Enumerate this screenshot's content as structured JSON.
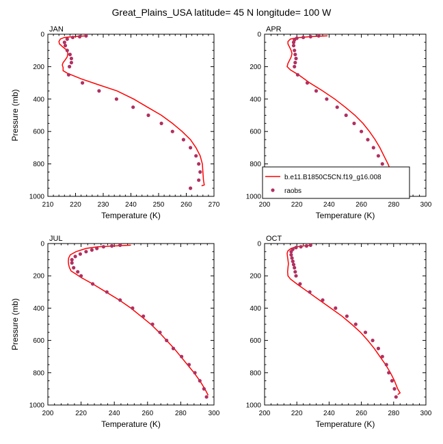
{
  "figure": {
    "title": "Great_Plains_USA  latitude= 45 N longitude= 100 W"
  },
  "colors": {
    "model_line": "#ff0000",
    "obs_marker": "#b03060",
    "frame": "#000000"
  },
  "legend": {
    "model_label": "b.e11.B1850C5CN.f19_g16.008",
    "obs_label": "raobs",
    "panel_index": 1
  },
  "chart_data": [
    {
      "type": "line",
      "panel": "JAN",
      "title": "JAN",
      "xlabel": "Temperature (K)",
      "ylabel": "Pressure (mb)",
      "xlim": [
        210,
        270
      ],
      "ylim": [
        1000,
        0
      ],
      "xticks": [
        210,
        220,
        230,
        240,
        250,
        260,
        270
      ],
      "yticks": [
        0,
        200,
        400,
        600,
        800,
        1000
      ],
      "grid": false,
      "series": [
        {
          "name": "b.e11.B1850C5CN.f19_g16.008",
          "kind": "line",
          "points": [
            [
              224,
              10
            ],
            [
              219,
              15
            ],
            [
              216,
              20
            ],
            [
              214.5,
              30
            ],
            [
              214,
              45
            ],
            [
              214.2,
              60
            ],
            [
              215.5,
              80
            ],
            [
              217,
              100
            ],
            [
              217.2,
              120
            ],
            [
              217,
              140
            ],
            [
              216.2,
              160
            ],
            [
              215.5,
              175
            ],
            [
              215.2,
              190
            ],
            [
              215.5,
              205
            ],
            [
              215.5,
              225
            ],
            [
              217,
              240
            ],
            [
              222,
              275
            ],
            [
              228,
              310
            ],
            [
              235,
              350
            ],
            [
              241,
              400
            ],
            [
              246,
              450
            ],
            [
              251,
              500
            ],
            [
              255,
              550
            ],
            [
              258.5,
              600
            ],
            [
              261.5,
              650
            ],
            [
              263.5,
              700
            ],
            [
              265,
              750
            ],
            [
              265.8,
              800
            ],
            [
              266,
              850
            ],
            [
              266.2,
              900
            ],
            [
              266.5,
              930
            ],
            [
              265.5,
              935
            ]
          ]
        },
        {
          "name": "raobs",
          "kind": "scatter",
          "points": [
            [
              223.8,
              10
            ],
            [
              221.5,
              15
            ],
            [
              219,
              20
            ],
            [
              217,
              30
            ],
            [
              216,
              50
            ],
            [
              216.3,
              70
            ],
            [
              217,
              100
            ],
            [
              218,
              125
            ],
            [
              218.5,
              150
            ],
            [
              218.5,
              175
            ],
            [
              217.8,
              200
            ],
            [
              217.5,
              250
            ],
            [
              222.5,
              300
            ],
            [
              228.5,
              350
            ],
            [
              234.8,
              400
            ],
            [
              240.8,
              450
            ],
            [
              246.3,
              500
            ],
            [
              251,
              550
            ],
            [
              255,
              600
            ],
            [
              259,
              650
            ],
            [
              261.5,
              700
            ],
            [
              263.5,
              750
            ],
            [
              264.5,
              800
            ],
            [
              265,
              850
            ],
            [
              264.5,
              900
            ],
            [
              261.5,
              950
            ]
          ]
        }
      ]
    },
    {
      "type": "line",
      "panel": "APR",
      "title": "APR",
      "xlabel": "Temperature (K)",
      "ylabel": "",
      "xlim": [
        200,
        300
      ],
      "ylim": [
        1000,
        0
      ],
      "xticks": [
        200,
        220,
        240,
        260,
        280,
        300
      ],
      "yticks": [
        0,
        200,
        400,
        600,
        800,
        1000
      ],
      "grid": false,
      "series": [
        {
          "name": "b.e11.B1850C5CN.f19_g16.008",
          "kind": "line",
          "points": [
            [
              239,
              10
            ],
            [
              228,
              15
            ],
            [
              220,
              22
            ],
            [
              216,
              30
            ],
            [
              214.5,
              45
            ],
            [
              214.5,
              60
            ],
            [
              215.5,
              80
            ],
            [
              216.5,
              100
            ],
            [
              217,
              120
            ],
            [
              216.5,
              140
            ],
            [
              215.5,
              160
            ],
            [
              214.5,
              180
            ],
            [
              214,
              200
            ],
            [
              216,
              220
            ],
            [
              221,
              250
            ],
            [
              228,
              300
            ],
            [
              236,
              350
            ],
            [
              243.5,
              400
            ],
            [
              250,
              450
            ],
            [
              256,
              500
            ],
            [
              261,
              550
            ],
            [
              265,
              600
            ],
            [
              268.5,
              650
            ],
            [
              271.5,
              700
            ],
            [
              274,
              750
            ],
            [
              276.5,
              800
            ],
            [
              278.5,
              850
            ],
            [
              280.5,
              900
            ],
            [
              282,
              935
            ]
          ]
        },
        {
          "name": "raobs",
          "kind": "scatter",
          "points": [
            [
              233.5,
              10
            ],
            [
              228.5,
              15
            ],
            [
              224,
              20
            ],
            [
              220,
              25
            ],
            [
              218.5,
              35
            ],
            [
              218,
              50
            ],
            [
              218,
              70
            ],
            [
              218.5,
              100
            ],
            [
              219,
              125
            ],
            [
              219.5,
              150
            ],
            [
              219,
              175
            ],
            [
              218.5,
              200
            ],
            [
              220.5,
              250
            ],
            [
              226.5,
              300
            ],
            [
              232,
              350
            ],
            [
              238.5,
              400
            ],
            [
              245,
              450
            ],
            [
              250.5,
              500
            ],
            [
              255.5,
              550
            ],
            [
              260,
              600
            ],
            [
              264,
              650
            ],
            [
              267.5,
              700
            ],
            [
              270.5,
              750
            ],
            [
              273,
              800
            ],
            [
              275.5,
              850
            ],
            [
              278,
              900
            ],
            [
              280,
              950
            ]
          ]
        }
      ]
    },
    {
      "type": "line",
      "panel": "JUL",
      "title": "JUL",
      "xlabel": "Temperature (K)",
      "ylabel": "Pressure (mb)",
      "xlim": [
        200,
        300
      ],
      "ylim": [
        1000,
        0
      ],
      "xticks": [
        200,
        220,
        240,
        260,
        280,
        300
      ],
      "yticks": [
        0,
        200,
        400,
        600,
        800,
        1000
      ],
      "grid": false,
      "series": [
        {
          "name": "b.e11.B1850C5CN.f19_g16.008",
          "kind": "line",
          "points": [
            [
              250,
              10
            ],
            [
              240,
              15
            ],
            [
              230,
              20
            ],
            [
              223,
              30
            ],
            [
              217,
              50
            ],
            [
              213.5,
              70
            ],
            [
              212.5,
              90
            ],
            [
              212.3,
              110
            ],
            [
              212.5,
              130
            ],
            [
              213,
              150
            ],
            [
              214,
              170
            ],
            [
              217,
              190
            ],
            [
              220,
              210
            ],
            [
              227,
              250
            ],
            [
              235,
              300
            ],
            [
              243,
              350
            ],
            [
              250,
              400
            ],
            [
              256,
              450
            ],
            [
              262,
              500
            ],
            [
              267,
              550
            ],
            [
              271.5,
              600
            ],
            [
              276,
              650
            ],
            [
              280,
              700
            ],
            [
              284,
              750
            ],
            [
              288,
              800
            ],
            [
              291.5,
              850
            ],
            [
              294.5,
              900
            ],
            [
              296,
              930
            ],
            [
              296.5,
              940
            ]
          ]
        },
        {
          "name": "raobs",
          "kind": "scatter",
          "points": [
            [
              243.5,
              10
            ],
            [
              238.5,
              15
            ],
            [
              233.5,
              20
            ],
            [
              229.5,
              30
            ],
            [
              226.5,
              40
            ],
            [
              223,
              50
            ],
            [
              219.5,
              65
            ],
            [
              216.5,
              80
            ],
            [
              214.5,
              100
            ],
            [
              214.5,
              120
            ],
            [
              215.5,
              150
            ],
            [
              218,
              175
            ],
            [
              220,
              200
            ],
            [
              227,
              250
            ],
            [
              235.5,
              300
            ],
            [
              243.5,
              350
            ],
            [
              251,
              400
            ],
            [
              257.5,
              450
            ],
            [
              263,
              500
            ],
            [
              267.5,
              550
            ],
            [
              271.5,
              600
            ],
            [
              275.5,
              650
            ],
            [
              280.5,
              700
            ],
            [
              285,
              750
            ],
            [
              288.5,
              800
            ],
            [
              291.5,
              850
            ],
            [
              294,
              900
            ],
            [
              295.5,
              950
            ]
          ]
        }
      ]
    },
    {
      "type": "line",
      "panel": "OCT",
      "title": "OCT",
      "xlabel": "Temperature (K)",
      "ylabel": "",
      "xlim": [
        200,
        300
      ],
      "ylim": [
        1000,
        0
      ],
      "xticks": [
        200,
        220,
        240,
        260,
        280,
        300
      ],
      "yticks": [
        0,
        200,
        400,
        600,
        800,
        1000
      ],
      "grid": false,
      "series": [
        {
          "name": "b.e11.B1850C5CN.f19_g16.008",
          "kind": "line",
          "points": [
            [
              229,
              10
            ],
            [
              224,
              15
            ],
            [
              219.5,
              20
            ],
            [
              216.5,
              30
            ],
            [
              214.5,
              45
            ],
            [
              214,
              60
            ],
            [
              214.2,
              80
            ],
            [
              214.5,
              100
            ],
            [
              214.8,
              125
            ],
            [
              214.5,
              150
            ],
            [
              214.3,
              175
            ],
            [
              214.5,
              200
            ],
            [
              216,
              220
            ],
            [
              220,
              250
            ],
            [
              227,
              300
            ],
            [
              234,
              350
            ],
            [
              241,
              400
            ],
            [
              248,
              450
            ],
            [
              254,
              500
            ],
            [
              259.5,
              550
            ],
            [
              264,
              600
            ],
            [
              268,
              650
            ],
            [
              271.5,
              700
            ],
            [
              275,
              750
            ],
            [
              278,
              800
            ],
            [
              280.5,
              850
            ],
            [
              282.5,
              900
            ],
            [
              284,
              925
            ],
            [
              282.5,
              935
            ]
          ]
        },
        {
          "name": "raobs",
          "kind": "scatter",
          "points": [
            [
              228.5,
              10
            ],
            [
              226,
              15
            ],
            [
              222.5,
              20
            ],
            [
              219.5,
              25
            ],
            [
              217.5,
              35
            ],
            [
              216.5,
              50
            ],
            [
              216.5,
              70
            ],
            [
              217,
              90
            ],
            [
              217.5,
              110
            ],
            [
              218,
              130
            ],
            [
              218.5,
              150
            ],
            [
              219,
              175
            ],
            [
              219.5,
              200
            ],
            [
              222,
              250
            ],
            [
              228,
              300
            ],
            [
              236,
              350
            ],
            [
              244,
              400
            ],
            [
              251,
              450
            ],
            [
              256.5,
              500
            ],
            [
              262.5,
              550
            ],
            [
              267,
              600
            ],
            [
              270.5,
              650
            ],
            [
              273,
              700
            ],
            [
              275.5,
              750
            ],
            [
              277,
              800
            ],
            [
              279,
              850
            ],
            [
              280.5,
              900
            ],
            [
              281.5,
              950
            ]
          ]
        }
      ]
    }
  ]
}
